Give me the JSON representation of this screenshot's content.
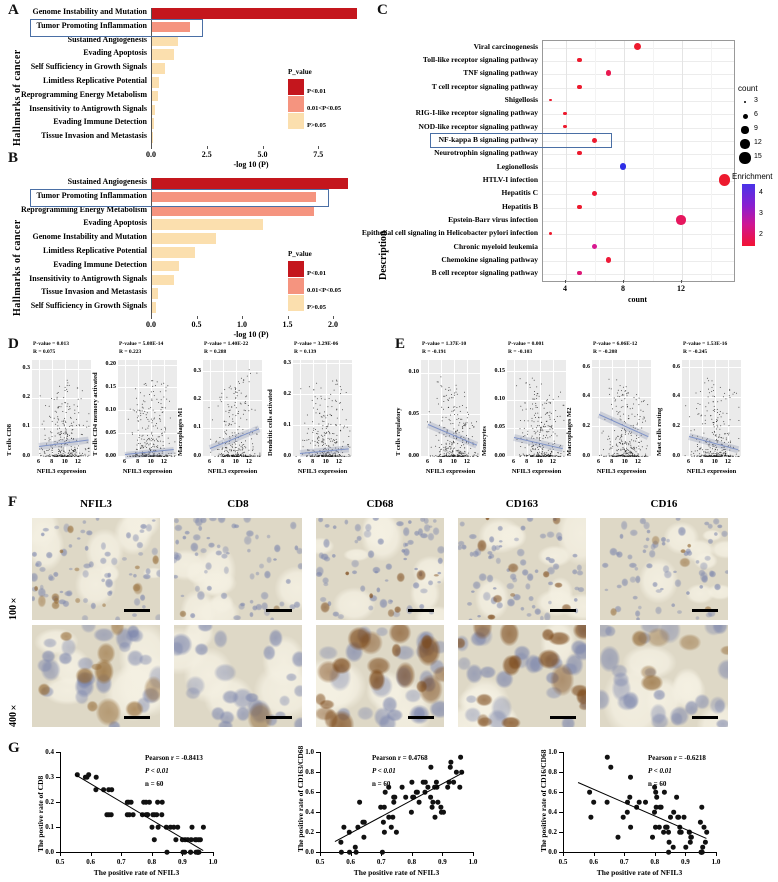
{
  "figure": {
    "panel_labels": {
      "a": "A",
      "b": "B",
      "c": "C",
      "d": "D",
      "e": "E",
      "f": "F",
      "g": "G"
    }
  },
  "chart_data": [
    {
      "id": "A",
      "type": "bar",
      "ylabel": "Hallmarks of cancer",
      "xlabel": "-log 10 (P)",
      "xticks": [
        "0.0",
        "2.5",
        "5.0",
        "7.5"
      ],
      "xtick_values": [
        0,
        2.5,
        5,
        7.5
      ],
      "xlim": [
        0,
        9.6
      ],
      "categories": [
        "Genome Instability and Mutation",
        "Tumor Promoting Inflammation",
        "Sustained Angiogenesis",
        "Evading Apoptosis",
        "Self Sufficiency in Growth Signals",
        "Limitless Replicative Potential",
        "Reprogramming Energy Metabolism",
        "Insensitivity to Antigrowth Signals",
        "Evading Immune Detection",
        "Tissue Invasion and Metastasis"
      ],
      "values": [
        9.2,
        1.7,
        1.15,
        1.0,
        0.6,
        0.32,
        0.26,
        0.12,
        0.07,
        0.03
      ],
      "p_class": [
        "P<0.01",
        "0.01<P<0.05",
        "P>0.05",
        "P>0.05",
        "P>0.05",
        "P>0.05",
        "P>0.05",
        "P>0.05",
        "P>0.05",
        "P>0.05"
      ],
      "highlight_category": "Tumor Promoting Inflammation",
      "legend": {
        "title": "P_value",
        "entries": [
          {
            "label": "P<0.01",
            "color": "#c4161d"
          },
          {
            "label": "0.01<P<0.05",
            "color": "#f5947f"
          },
          {
            "label": "P>0.05",
            "color": "#fbdfae"
          }
        ]
      }
    },
    {
      "id": "B",
      "type": "bar",
      "ylabel": "Hallmarks of cancer",
      "xlabel": "-log 10 (P)",
      "xticks": [
        "0.0",
        "0.5",
        "1.0",
        "1.5",
        "2.0"
      ],
      "xtick_values": [
        0,
        0.5,
        1,
        1.5,
        2
      ],
      "xlim": [
        0,
        2.3
      ],
      "categories": [
        "Sustained Angiogenesis",
        "Tumor Promoting Inflammation",
        "Reprogramming Energy Metabolism",
        "Evading Apoptosis",
        "Genome Instability and Mutation",
        "Limitless Replicative Potential",
        "Evading Immune Detection",
        "Insensitivity to Antigrowth Signals",
        "Tissue Invasion and Metastasis",
        "Self Sufficiency in Growth Signals"
      ],
      "values": [
        2.15,
        1.8,
        1.78,
        1.22,
        0.7,
        0.47,
        0.3,
        0.24,
        0.07,
        0.04
      ],
      "p_class": [
        "P<0.01",
        "0.01<P<0.05",
        "0.01<P<0.05",
        "P>0.05",
        "P>0.05",
        "P>0.05",
        "P>0.05",
        "P>0.05",
        "P>0.05",
        "P>0.05"
      ],
      "highlight_category": "Tumor Promoting Inflammation",
      "legend": {
        "title": "P_value",
        "entries": [
          {
            "label": "P<0.01",
            "color": "#c4161d"
          },
          {
            "label": "0.01<P<0.05",
            "color": "#f5947f"
          },
          {
            "label": "P>0.05",
            "color": "#fbdfae"
          }
        ]
      }
    },
    {
      "id": "C",
      "type": "dot",
      "ylabel": "Description",
      "xlabel": "count",
      "xticks": [
        "4",
        "8",
        "12"
      ],
      "xtick_values": [
        4,
        8,
        12
      ],
      "xlim": [
        2.5,
        16
      ],
      "grid": true,
      "highlight_category": "NF-kappa B signaling pathway",
      "rows": [
        {
          "label": "Viral carcinogenesis",
          "count": 9,
          "enrichment": 1.8,
          "color": "#ed1a2e"
        },
        {
          "label": "Toll-like receptor signaling pathway",
          "count": 5,
          "enrichment": 1.8,
          "color": "#ed1a2e"
        },
        {
          "label": "TNF signaling pathway",
          "count": 7,
          "enrichment": 2.1,
          "color": "#e91950"
        },
        {
          "label": "T cell receptor signaling pathway",
          "count": 5,
          "enrichment": 1.8,
          "color": "#ed1a2e"
        },
        {
          "label": "Shigellosis",
          "count": 3,
          "enrichment": 1.8,
          "color": "#ed1a2e"
        },
        {
          "label": "RIG-I-like receptor signaling pathway",
          "count": 4,
          "enrichment": 1.8,
          "color": "#ed1a2e"
        },
        {
          "label": "NOD-like receptor signaling pathway",
          "count": 4,
          "enrichment": 1.8,
          "color": "#ed1a2e"
        },
        {
          "label": "NF-kappa B signaling pathway",
          "count": 6,
          "enrichment": 1.9,
          "color": "#ed1a2e"
        },
        {
          "label": "Neurotrophin signaling pathway",
          "count": 5,
          "enrichment": 1.8,
          "color": "#ed1a2e"
        },
        {
          "label": "Legionellosis",
          "count": 8,
          "enrichment": 4.5,
          "color": "#2f2fe6"
        },
        {
          "label": "HTLV-I infection",
          "count": 15,
          "enrichment": 1.7,
          "color": "#ed1a2e"
        },
        {
          "label": "Hepatitis C",
          "count": 6,
          "enrichment": 1.9,
          "color": "#ee1733"
        },
        {
          "label": "Hepatitis B",
          "count": 5,
          "enrichment": 1.8,
          "color": "#ed1a2e"
        },
        {
          "label": "Epstein-Barr virus infection",
          "count": 12,
          "enrichment": 2.3,
          "color": "#e6175e"
        },
        {
          "label": "Epithelial cell signaling in Helicobacter pylori infection",
          "count": 3,
          "enrichment": 1.8,
          "color": "#ed1a2e"
        },
        {
          "label": "Chronic myeloid leukemia",
          "count": 6,
          "enrichment": 2.8,
          "color": "#d81890"
        },
        {
          "label": "Chemokine signaling pathway",
          "count": 7,
          "enrichment": 1.9,
          "color": "#ee1a38"
        },
        {
          "label": "B cell receptor signaling pathway",
          "count": 5,
          "enrichment": 2.6,
          "color": "#dd1877"
        }
      ],
      "legend_count": {
        "title": "count",
        "sizes": [
          3,
          6,
          9,
          12,
          15
        ]
      },
      "legend_color": {
        "title": "Enrichment",
        "ticks": [
          "4",
          "3",
          "2"
        ],
        "gradient": [
          "#4a33e8",
          "#8a1fd0",
          "#cf1693",
          "#f31333"
        ]
      }
    },
    {
      "id": "D",
      "type": "scatter-grid",
      "xlabel": "NFIL3 expression",
      "xticks": [
        "6",
        "8",
        "10",
        "12"
      ],
      "xtick_values": [
        6,
        8,
        10,
        12
      ],
      "xlim": [
        5,
        14
      ],
      "plots": [
        {
          "ylabel": "T cells CD8",
          "stats": [
            "P-value = 0.013",
            "R = 0.075"
          ],
          "yticks": [
            "0.0",
            "0.1",
            "0.2",
            "0.3"
          ],
          "ytick_values": [
            0,
            0.1,
            0.2,
            0.3
          ],
          "ymax": 0.33,
          "trend": [
            [
              6,
              0.033
            ],
            [
              13.5,
              0.055
            ]
          ]
        },
        {
          "ylabel": "T cells CD4 memory activated",
          "stats": [
            "P-value = 5.08E-14",
            "R = 0.223"
          ],
          "yticks": [
            "0.00",
            "0.05",
            "0.10",
            "0.15",
            "0.20"
          ],
          "ytick_values": [
            0,
            0.05,
            0.1,
            0.15,
            0.2
          ],
          "ymax": 0.21,
          "trend": [
            [
              6,
              0.002
            ],
            [
              13.5,
              0.013
            ]
          ]
        },
        {
          "ylabel": "Macrophages M1",
          "stats": [
            "P-value = 1.40E-22",
            "R = 0.288"
          ],
          "yticks": [
            "0.0",
            "0.1",
            "0.2",
            "0.3"
          ],
          "ytick_values": [
            0,
            0.1,
            0.2,
            0.3
          ],
          "ymax": 0.34,
          "trend": [
            [
              6,
              0.025
            ],
            [
              13.5,
              0.095
            ]
          ]
        },
        {
          "ylabel": "Dendritic cells activated",
          "stats": [
            "P-value = 3.29E-06",
            "R = 0.139"
          ],
          "yticks": [
            "0.0",
            "0.1",
            "0.2",
            "0.3"
          ],
          "ytick_values": [
            0,
            0.1,
            0.2,
            0.3
          ],
          "ymax": 0.31,
          "trend": [
            [
              6,
              0.007
            ],
            [
              13.5,
              0.022
            ]
          ]
        }
      ]
    },
    {
      "id": "E",
      "type": "scatter-grid",
      "xlabel": "NFIL3 expression",
      "xticks": [
        "6",
        "8",
        "10",
        "12"
      ],
      "xtick_values": [
        6,
        8,
        10,
        12
      ],
      "xlim": [
        5,
        14
      ],
      "plots": [
        {
          "ylabel": "T cells regulatory",
          "stats": [
            "P-value = 1.37E-10",
            "R = -0.191"
          ],
          "yticks": [
            "0.00",
            "0.05",
            "0.10"
          ],
          "ytick_values": [
            0,
            0.05,
            0.1
          ],
          "ymax": 0.115,
          "trend": [
            [
              6,
              0.038
            ],
            [
              13.5,
              0.013
            ]
          ]
        },
        {
          "ylabel": "Monocytes",
          "stats": [
            "P-value = 0.001",
            "R = -0.103"
          ],
          "yticks": [
            "0.00",
            "0.05",
            "0.10",
            "0.15"
          ],
          "ytick_values": [
            0,
            0.05,
            0.1,
            0.15
          ],
          "ymax": 0.17,
          "trend": [
            [
              6,
              0.033
            ],
            [
              13.5,
              0.013
            ]
          ]
        },
        {
          "ylabel": "Macrophages M2",
          "stats": [
            "P-value = 6.06E-12",
            "R = -0.208"
          ],
          "yticks": [
            "0.0",
            "0.2",
            "0.4",
            "0.6"
          ],
          "ytick_values": [
            0,
            0.2,
            0.4,
            0.6
          ],
          "ymax": 0.65,
          "trend": [
            [
              6,
              0.28
            ],
            [
              13.5,
              0.13
            ]
          ]
        },
        {
          "ylabel": "Mast cells resting",
          "stats": [
            "P-value = 1.53E-16",
            "R = -0.245"
          ],
          "yticks": [
            "0.0",
            "0.2",
            "0.4",
            "0.6"
          ],
          "ytick_values": [
            0,
            0.2,
            0.4,
            0.6
          ],
          "ymax": 0.65,
          "trend": [
            [
              6,
              0.13
            ],
            [
              13.5,
              0.04
            ]
          ]
        }
      ]
    },
    {
      "id": "G",
      "type": "scatter",
      "xlabel": "The positive rate of NFIL3",
      "xticks": [
        "0.5",
        "0.6",
        "0.7",
        "0.8",
        "0.9",
        "1.0"
      ],
      "xtick_values": [
        0.5,
        0.6,
        0.7,
        0.8,
        0.9,
        1.0
      ],
      "xlim": [
        0.5,
        1.0
      ],
      "plots": [
        {
          "ylabel": "The postive rate of CD8",
          "stats": [
            "Pearson r = -0.8413",
            "P < 0.01",
            "n = 60"
          ],
          "yticks": [
            "0.0",
            "0.1",
            "0.2",
            "0.3",
            "0.4"
          ],
          "ytick_values": [
            0,
            0.1,
            0.2,
            0.3,
            0.4
          ],
          "ymax": 0.4,
          "n": 60,
          "trend": [
            [
              0.55,
              0.31
            ],
            [
              0.97,
              0.005
            ]
          ],
          "noise_sd": 0.045,
          "clamp": 0.31,
          "stats_x": 85
        },
        {
          "ylabel": "The positive rate of CD163/CD68",
          "stats": [
            "Pearson r = 0.4768",
            "P < 0.01",
            "n = 60"
          ],
          "yticks": [
            "0.0",
            "0.2",
            "0.4",
            "0.6",
            "0.8",
            "1.0"
          ],
          "ytick_values": [
            0,
            0.2,
            0.4,
            0.6,
            0.8,
            1.0
          ],
          "ymax": 1.0,
          "n": 60,
          "trend": [
            [
              0.55,
              0.1
            ],
            [
              0.97,
              0.79
            ]
          ],
          "noise_sd": 0.16,
          "clamp": 0.95,
          "stats_x": 52
        },
        {
          "ylabel": "The positive rate of CD16/CD68",
          "stats": [
            "Pearson r = -0.6218",
            "P < 0.01",
            "n = 60"
          ],
          "yticks": [
            "0.0",
            "0.2",
            "0.4",
            "0.6",
            "0.8",
            "1.0"
          ],
          "ytick_values": [
            0,
            0.2,
            0.4,
            0.6,
            0.8,
            1.0
          ],
          "ymax": 1.0,
          "n": 60,
          "trend": [
            [
              0.55,
              0.69
            ],
            [
              0.97,
              0.13
            ]
          ],
          "noise_sd": 0.17,
          "clamp": 0.95,
          "stats_x": 85
        }
      ]
    }
  ],
  "panel_f": {
    "columns": [
      "NFIL3",
      "CD8",
      "CD68",
      "CD163",
      "CD16"
    ],
    "rows": [
      "100×",
      "400×"
    ]
  }
}
